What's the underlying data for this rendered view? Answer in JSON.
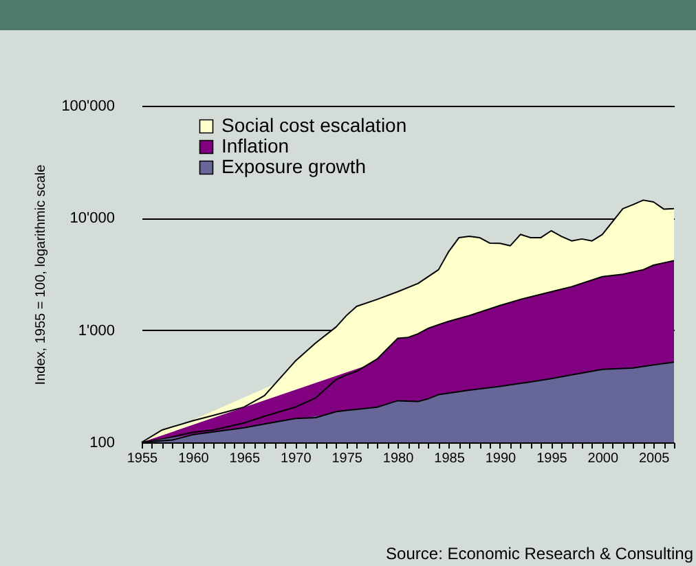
{
  "chart_data": {
    "type": "area",
    "ylabel": "Index, 1955 = 100, logarithmic scale",
    "annotations": [
      "Source: Economic Research & Consulting"
    ],
    "log": "y",
    "grid": "y",
    "legend": "top left",
    "xlim": [
      1955,
      2007
    ],
    "xticks": [
      1955,
      {
        "value": 1956,
        "label": null
      },
      {
        "value": 1957,
        "label": null
      },
      {
        "value": 1958,
        "label": null
      },
      {
        "value": 1959,
        "label": null
      },
      1960,
      {
        "value": 1961,
        "label": null
      },
      {
        "value": 1962,
        "label": null
      },
      {
        "value": 1963,
        "label": null
      },
      {
        "value": 1964,
        "label": null
      },
      1965,
      {
        "value": 1966,
        "label": null
      },
      {
        "value": 1967,
        "label": null
      },
      {
        "value": 1968,
        "label": null
      },
      {
        "value": 1969,
        "label": null
      },
      1970,
      {
        "value": 1971,
        "label": null
      },
      {
        "value": 1972,
        "label": null
      },
      {
        "value": 1973,
        "label": null
      },
      {
        "value": 1974,
        "label": null
      },
      1975,
      {
        "value": 1976,
        "label": null
      },
      {
        "value": 1977,
        "label": null
      },
      {
        "value": 1978,
        "label": null
      },
      {
        "value": 1979,
        "label": null
      },
      1980,
      {
        "value": 1981,
        "label": null
      },
      {
        "value": 1982,
        "label": null
      },
      {
        "value": 1983,
        "label": null
      },
      {
        "value": 1984,
        "label": null
      },
      1985,
      {
        "value": 1986,
        "label": null
      },
      {
        "value": 1987,
        "label": null
      },
      {
        "value": 1988,
        "label": null
      },
      {
        "value": 1989,
        "label": null
      },
      1990,
      {
        "value": 1991,
        "label": null
      },
      {
        "value": 1992,
        "label": null
      },
      {
        "value": 1993,
        "label": null
      },
      {
        "value": 1994,
        "label": null
      },
      1995,
      {
        "value": 1996,
        "label": null
      },
      {
        "value": 1997,
        "label": null
      },
      {
        "value": 1998,
        "label": null
      },
      {
        "value": 1999,
        "label": null
      },
      2000,
      {
        "value": 2001,
        "label": null
      },
      {
        "value": 2002,
        "label": null
      },
      {
        "value": 2003,
        "label": null
      },
      {
        "value": 2004,
        "label": null
      },
      2005,
      {
        "value": 2006,
        "label": null
      },
      {
        "value": 2007,
        "label": null
      }
    ],
    "ylim": [
      100,
      100000
    ],
    "yticks": [
      100,
      {
        "value": 1000,
        "label": "1'000"
      },
      {
        "value": 10000,
        "label": "10'000"
      },
      {
        "value": 100000,
        "label": "100'000"
      }
    ],
    "series": [
      {
        "name": "Social cost escalation",
        "color": "#ffffcc",
        "x": [
          1955,
          1957,
          1960,
          1962,
          1965,
          1967,
          1970,
          1972,
          1974,
          1975,
          1976,
          1978,
          1980,
          1982,
          1984,
          1985,
          1986,
          1987,
          1988,
          1989,
          1990,
          1991,
          1992,
          1993,
          1994,
          1995,
          1996,
          1997,
          1998,
          1999,
          2000,
          2001,
          2002,
          2003,
          2004,
          2005,
          2006,
          2007
        ],
        "values": [
          100,
          129,
          156,
          174,
          206,
          261,
          529,
          770,
          1070,
          1350,
          1630,
          1880,
          2200,
          2610,
          3460,
          5030,
          6680,
          6860,
          6680,
          5970,
          5950,
          5650,
          7130,
          6680,
          6680,
          7690,
          6860,
          6250,
          6500,
          6250,
          7130,
          9270,
          12080,
          13150,
          14420,
          13900,
          12000,
          12100
        ]
      },
      {
        "name": "Inflation",
        "color": "#800080",
        "x": [
          1955,
          1957,
          1958,
          1960,
          1962,
          1965,
          1967,
          1970,
          1972,
          1974,
          1975,
          1976,
          1978,
          1980,
          1981,
          1982,
          1983,
          1984,
          1985,
          1987,
          1990,
          1992,
          1995,
          1997,
          2000,
          2002,
          2004,
          2005,
          2007
        ],
        "values": [
          100,
          107,
          112,
          123,
          129,
          149,
          171,
          206,
          249,
          363,
          399,
          430,
          553,
          845,
          860,
          930,
          1040,
          1120,
          1200,
          1350,
          1660,
          1880,
          2200,
          2440,
          3000,
          3150,
          3460,
          3800,
          4170
        ]
      },
      {
        "name": "Exposure growth",
        "color": "#666699",
        "x": [
          1955,
          1958,
          1960,
          1965,
          1967,
          1970,
          1972,
          1974,
          1976,
          1978,
          1980,
          1982,
          1983,
          1984,
          1987,
          1990,
          1993,
          1995,
          1997,
          2000,
          2003,
          2005,
          2007
        ],
        "values": [
          100,
          105,
          117,
          135,
          146,
          163,
          166,
          188,
          197,
          206,
          235,
          231,
          245,
          266,
          292,
          315,
          346,
          370,
          399,
          447,
          460,
          490,
          518
        ]
      }
    ]
  }
}
